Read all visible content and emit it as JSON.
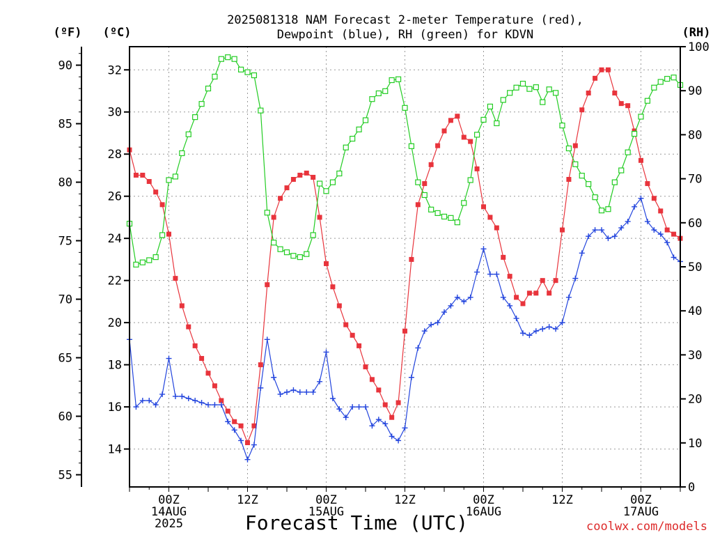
{
  "chart_data": {
    "type": "line",
    "title_lines": [
      "2025081318 NAM Forecast 2-meter Temperature (red),",
      "Dewpoint (blue), RH (green) for KDVN"
    ],
    "xlabel": "Forecast Time (UTC)",
    "credit": "coolwx.com/models",
    "units": {
      "fahrenheit": "(ºF)",
      "celsius": "(ºC)",
      "rh": "(RH)"
    },
    "x_range_hours": [
      0,
      84
    ],
    "x_ticks": [
      {
        "h": 6,
        "lines": [
          "00Z",
          "14AUG",
          "2025"
        ]
      },
      {
        "h": 18,
        "lines": [
          "12Z"
        ]
      },
      {
        "h": 30,
        "lines": [
          "00Z",
          "15AUG"
        ]
      },
      {
        "h": 42,
        "lines": [
          "12Z"
        ]
      },
      {
        "h": 54,
        "lines": [
          "00Z",
          "16AUG"
        ]
      },
      {
        "h": 66,
        "lines": [
          "12Z"
        ]
      },
      {
        "h": 78,
        "lines": [
          "00Z",
          "17AUG"
        ]
      }
    ],
    "y_celsius": {
      "range": [
        12.2,
        33.1
      ],
      "ticks": [
        "14",
        "16",
        "18",
        "20",
        "22",
        "24",
        "26",
        "28",
        "30",
        "32"
      ]
    },
    "y_fahrenheit": {
      "ticks": [
        "55",
        "60",
        "65",
        "70",
        "75",
        "80",
        "85",
        "90"
      ]
    },
    "y_rh": {
      "range": [
        0,
        100
      ],
      "ticks": [
        "0",
        "10",
        "20",
        "30",
        "40",
        "50",
        "60",
        "70",
        "80",
        "90",
        "100"
      ]
    },
    "grid": true,
    "series": [
      {
        "name": "Temperature",
        "color": "#e8343c",
        "marker": "square-filled",
        "axis": "celsius",
        "x": [
          0,
          1,
          2,
          3,
          4,
          5,
          6,
          7,
          8,
          9,
          10,
          11,
          12,
          13,
          14,
          15,
          16,
          17,
          18,
          19,
          20,
          21,
          22,
          23,
          24,
          25,
          26,
          27,
          28,
          29,
          30,
          31,
          32,
          33,
          34,
          35,
          36,
          37,
          38,
          39,
          40,
          41,
          42,
          43,
          44,
          45,
          46,
          47,
          48,
          49,
          50,
          51,
          52,
          53,
          54,
          55,
          56,
          57,
          58,
          59,
          60,
          61,
          62,
          63,
          64,
          65,
          66,
          67,
          68,
          69,
          70,
          71,
          72,
          73,
          74,
          75,
          76,
          77,
          78,
          79,
          80,
          81,
          82,
          83,
          84
        ],
        "y": [
          28.2,
          27.0,
          27.0,
          26.7,
          26.2,
          25.6,
          24.2,
          22.1,
          20.8,
          19.8,
          18.9,
          18.3,
          17.6,
          17.0,
          16.3,
          15.8,
          15.3,
          15.1,
          14.3,
          15.1,
          18.0,
          21.8,
          25.0,
          25.9,
          26.4,
          26.8,
          27.0,
          27.1,
          26.9,
          25.0,
          22.8,
          21.7,
          20.8,
          19.9,
          19.4,
          18.9,
          17.9,
          17.3,
          16.8,
          16.1,
          15.5,
          16.2,
          19.6,
          23.0,
          25.6,
          26.6,
          27.5,
          28.4,
          29.1,
          29.6,
          29.8,
          28.8,
          28.6,
          27.3,
          25.5,
          25.0,
          24.5,
          23.1,
          22.2,
          21.2,
          20.9,
          21.4,
          21.4,
          22.0,
          21.4,
          22.0,
          24.4,
          26.8,
          28.4,
          30.1,
          30.9,
          31.6,
          32.0,
          32.0,
          30.9,
          30.4,
          30.3,
          29.1,
          27.7,
          26.6,
          25.9,
          25.3,
          24.4,
          24.2,
          24.0
        ]
      },
      {
        "name": "Dewpoint",
        "color": "#2244dd",
        "marker": "plus",
        "axis": "celsius",
        "x": [
          0,
          1,
          2,
          3,
          4,
          5,
          6,
          7,
          8,
          9,
          10,
          11,
          12,
          13,
          14,
          15,
          16,
          17,
          18,
          19,
          20,
          21,
          22,
          23,
          24,
          25,
          26,
          27,
          28,
          29,
          30,
          31,
          32,
          33,
          34,
          35,
          36,
          37,
          38,
          39,
          40,
          41,
          42,
          43,
          44,
          45,
          46,
          47,
          48,
          49,
          50,
          51,
          52,
          53,
          54,
          55,
          56,
          57,
          58,
          59,
          60,
          61,
          62,
          63,
          64,
          65,
          66,
          67,
          68,
          69,
          70,
          71,
          72,
          73,
          74,
          75,
          76,
          77,
          78,
          79,
          80,
          81,
          82,
          83,
          84
        ],
        "y": [
          19.2,
          16.0,
          16.3,
          16.3,
          16.1,
          16.6,
          18.3,
          16.5,
          16.5,
          16.4,
          16.3,
          16.2,
          16.1,
          16.1,
          16.1,
          15.3,
          14.9,
          14.4,
          13.5,
          14.2,
          16.9,
          19.2,
          17.4,
          16.6,
          16.7,
          16.8,
          16.7,
          16.7,
          16.7,
          17.2,
          18.6,
          16.4,
          15.9,
          15.5,
          16.0,
          16.0,
          16.0,
          15.1,
          15.4,
          15.2,
          14.6,
          14.4,
          15.0,
          17.4,
          18.8,
          19.6,
          19.9,
          20.0,
          20.5,
          20.8,
          21.2,
          21.0,
          21.2,
          22.4,
          23.5,
          22.3,
          22.3,
          21.2,
          20.8,
          20.2,
          19.5,
          19.4,
          19.6,
          19.7,
          19.8,
          19.7,
          20.0,
          21.2,
          22.1,
          23.3,
          24.1,
          24.4,
          24.4,
          24.0,
          24.1,
          24.5,
          24.8,
          25.5,
          25.9,
          24.8,
          24.4,
          24.2,
          23.8,
          23.1,
          22.9
        ]
      },
      {
        "name": "RH",
        "color": "#22cc22",
        "marker": "square-open",
        "axis": "rh",
        "x": [
          0,
          1,
          2,
          3,
          4,
          5,
          6,
          7,
          8,
          9,
          10,
          11,
          12,
          13,
          14,
          15,
          16,
          17,
          18,
          19,
          20,
          21,
          22,
          23,
          24,
          25,
          26,
          27,
          28,
          29,
          30,
          31,
          32,
          33,
          34,
          35,
          36,
          37,
          38,
          39,
          40,
          41,
          42,
          43,
          44,
          45,
          46,
          47,
          48,
          49,
          50,
          51,
          52,
          53,
          54,
          55,
          56,
          57,
          58,
          59,
          60,
          61,
          62,
          63,
          64,
          65,
          66,
          67,
          68,
          69,
          70,
          71,
          72,
          73,
          74,
          75,
          76,
          77,
          78,
          79,
          80,
          81,
          82,
          83,
          84
        ],
        "y": [
          59.8,
          50.5,
          51.0,
          51.5,
          52.2,
          57.2,
          69.7,
          70.5,
          75.8,
          80.1,
          84.0,
          87.0,
          90.5,
          93.2,
          97.2,
          97.6,
          97.2,
          94.8,
          94.2,
          93.5,
          85.5,
          62.3,
          55.5,
          54.0,
          53.3,
          52.5,
          52.2,
          52.9,
          57.2,
          68.9,
          67.2,
          69.2,
          71.2,
          77.1,
          79.1,
          81.2,
          83.3,
          88.1,
          89.4,
          89.9,
          92.4,
          92.6,
          86.1,
          77.4,
          69.2,
          66.3,
          63.0,
          62.2,
          61.4,
          61.1,
          60.1,
          64.5,
          69.7,
          80.0,
          83.4,
          86.4,
          82.6,
          87.9,
          89.5,
          90.7,
          91.6,
          90.4,
          90.8,
          87.4,
          90.3,
          89.5,
          82.1,
          76.9,
          73.3,
          70.7,
          68.8,
          65.8,
          62.8,
          63.1,
          69.2,
          71.9,
          76.0,
          80.2,
          84.1,
          87.7,
          90.7,
          92.0,
          92.7,
          93.0,
          91.3
        ]
      }
    ]
  }
}
